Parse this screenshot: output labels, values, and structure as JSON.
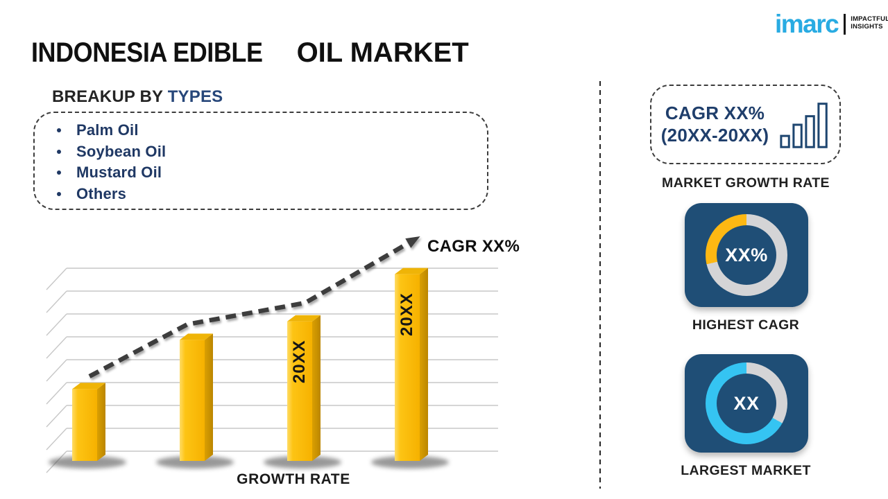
{
  "header": {
    "title_part1": "INDONESIA EDIBLE",
    "title_part2": "OIL MARKET"
  },
  "logo": {
    "brand": "imarc",
    "tagline_line1": "IMPACTFUL",
    "tagline_line2": "INSIGHTS",
    "brand_color": "#29ABE2"
  },
  "breakup": {
    "heading_prefix": "BREAKUP BY ",
    "heading_highlight": "TYPES",
    "items": [
      "Palm Oil",
      "Soybean Oil",
      "Mustard Oil",
      "Others"
    ]
  },
  "chart_data": {
    "type": "bar",
    "categories": [
      "",
      "",
      "20XX",
      "20XX"
    ],
    "values": [
      35,
      59,
      68,
      91
    ],
    "ylim": [
      0,
      100
    ],
    "bar_labels": [
      "",
      "",
      "20XX",
      "20XX"
    ],
    "title": "",
    "xlabel": "GROWTH RATE",
    "ylabel": "",
    "grid": true,
    "legend": "none",
    "trend_label": "CAGR XX%",
    "trend_style": "dashed-arrow",
    "trend_points": [
      [
        69,
        213
      ],
      [
        210,
        138
      ],
      [
        380,
        107
      ],
      [
        530,
        20
      ]
    ],
    "bar_color": "#FBBC09",
    "trend_color": "#3d3d3d"
  },
  "right_panel": {
    "growth_box": {
      "line1": "CAGR XX%",
      "line2": "(20XX-20XX)",
      "icon": "bar-chart-icon"
    },
    "market_growth_rate_caption": "MARKET GROWTH RATE",
    "highest_cagr": {
      "value": "XX%",
      "caption": "HIGHEST CAGR",
      "ring": [
        {
          "color": "#D4D4D6",
          "from": 0,
          "to": 257
        },
        {
          "color": "#FDB813",
          "from": 257,
          "to": 360
        }
      ]
    },
    "largest_market": {
      "value": "XX",
      "caption": "LARGEST MARKET",
      "ring": [
        {
          "color": "#D4D4D6",
          "from": 0,
          "to": 119
        },
        {
          "color": "#35C4F2",
          "from": 119,
          "to": 360
        }
      ]
    }
  },
  "colors": {
    "navy_text": "#1F3864",
    "heading_blue": "#27477A",
    "card_background": "#1F4E76",
    "ring_gray": "#D4D4D6",
    "ring_gold": "#FDB813",
    "ring_cyan": "#35C4F2",
    "bar_yellow": "#FBBC09"
  }
}
